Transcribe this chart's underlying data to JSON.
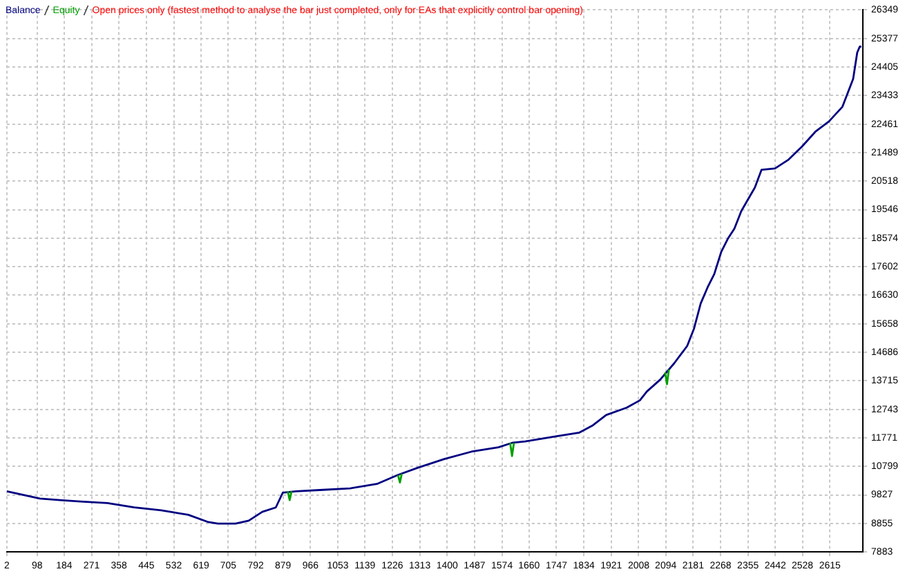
{
  "chart_data": {
    "type": "line",
    "annotations": [
      "Open prices only (fastest method to analyse the bar just completed, only for EAs that explicitly control bar opening)"
    ],
    "x": [
      2,
      107,
      171,
      235,
      321,
      406,
      492,
      578,
      642,
      672,
      728,
      770,
      813,
      856,
      878,
      920,
      1006,
      1092,
      1177,
      1242,
      1306,
      1391,
      1477,
      1563,
      1606,
      1648,
      1734,
      1820,
      1863,
      1905,
      1970,
      2012,
      2034,
      2076,
      2120,
      2162,
      2184,
      2205,
      2227,
      2248,
      2270,
      2291,
      2312,
      2334,
      2377,
      2398,
      2441,
      2484,
      2527,
      2569,
      2612,
      2655,
      2689,
      2702,
      2710,
      2715
    ],
    "series": [
      {
        "name": "Balance",
        "color": "#000080",
        "values": [
          9950,
          9700,
          9650,
          9600,
          9550,
          9400,
          9300,
          9150,
          8900,
          8850,
          8850,
          8950,
          9250,
          9400,
          9900,
          9950,
          10000,
          10050,
          10200,
          10500,
          10750,
          11050,
          11300,
          11450,
          11600,
          11650,
          11800,
          11950,
          12200,
          12550,
          12800,
          13050,
          13350,
          13750,
          14300,
          14900,
          15500,
          16350,
          16900,
          17350,
          18100,
          18550,
          18900,
          19500,
          20300,
          20900,
          20950,
          21250,
          21700,
          22200,
          22550,
          23050,
          24000,
          24900,
          25100,
          25100
        ]
      },
      {
        "name": "Equity",
        "color": "#00a000",
        "x": [
          894,
          900,
          906,
          1000,
          1244,
          1250,
          1256,
          1400,
          1600,
          1606,
          1612,
          1700,
          2092,
          2098,
          2104
        ],
        "values": [
          9950,
          9650,
          9950,
          null,
          10500,
          10250,
          10550,
          null,
          11600,
          11150,
          11600,
          null,
          14000,
          13600,
          14100
        ]
      }
    ],
    "xlim": [
      2,
      2720
    ],
    "xticks": [
      2,
      98,
      184,
      271,
      358,
      445,
      532,
      619,
      705,
      792,
      879,
      966,
      1053,
      1139,
      1226,
      1313,
      1400,
      1487,
      1574,
      1660,
      1747,
      1834,
      1921,
      2008,
      2094,
      2181,
      2268,
      2355,
      2442,
      2528,
      2615
    ],
    "ylim": [
      7883,
      26349
    ],
    "yticks": [
      7883,
      8855,
      9827,
      10799,
      11771,
      12743,
      13715,
      14686,
      15658,
      16630,
      17602,
      18574,
      19546,
      20518,
      21489,
      22461,
      23433,
      24405,
      25377,
      26349
    ],
    "grid": true,
    "legend": "top left",
    "marker": "none",
    "line_style": "solid"
  }
}
